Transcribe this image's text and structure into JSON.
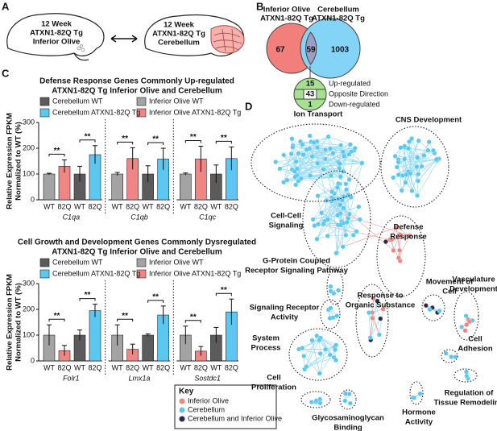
{
  "panel_labels": [
    "A",
    "B",
    "C",
    "D"
  ],
  "panel_a": {
    "left_brain": [
      "12 Week",
      "ATXN1-82Q Tg",
      "Inferior Olive"
    ],
    "right_brain": [
      "12 Week",
      "ATXN1-82Q Tg",
      "Cerebellum"
    ]
  },
  "panel_b": {
    "left_set": [
      "Inferior Olive",
      "ATXN1-82Q Tg"
    ],
    "right_set": [
      "Cerebellum",
      "ATXN1-82Q Tg"
    ],
    "left_only": 67,
    "overlap": 59,
    "right_only": 1003,
    "overlap_breakdown": [
      {
        "count": 15,
        "label": "Up-regulated"
      },
      {
        "count": 43,
        "label": "Opposite Direction"
      },
      {
        "count": 1,
        "label": "Down-regulated"
      }
    ]
  },
  "chart_data": [
    {
      "type": "bar",
      "title": [
        "Defense Response Genes Commonly Up-regulated",
        "ATXN1-82Q Tg Inferior Olive and Cerebellum"
      ],
      "y_label": [
        "Relative Expression FPKM",
        "Normalized to WT (%)"
      ],
      "categories": [
        "C1qa",
        "C1qb",
        "C1qc"
      ],
      "bar_labels": [
        "WT",
        "82Q"
      ],
      "series": [
        {
          "name": "Inferior Olive WT",
          "color": "#a3a3a3",
          "values": [
            100,
            100,
            100
          ],
          "errors": [
            3,
            6,
            4
          ]
        },
        {
          "name": "Inferior Olive ATXN1-82Q Tg",
          "color": "#ef8683",
          "values": [
            130,
            160,
            158
          ],
          "errors": [
            25,
            42,
            50
          ]
        },
        {
          "name": "Cerebellum WT",
          "color": "#5b5b5b",
          "values": [
            100,
            100,
            100
          ],
          "errors": [
            30,
            32,
            35
          ]
        },
        {
          "name": "Cerebellum ATXN1-82Q Tg",
          "color": "#5cc8f0",
          "values": [
            175,
            158,
            160
          ],
          "errors": [
            35,
            42,
            45
          ]
        }
      ],
      "ylim": [
        0,
        300
      ],
      "yticks": [
        0,
        100,
        200,
        300
      ],
      "significance_label": "**"
    },
    {
      "type": "bar",
      "title": [
        "Cell Growth and Development Genes Commonly Dysregulated",
        "ATXN1-82Q Tg Inferior Olive and Cerebellum"
      ],
      "y_label": [
        "Relative Expression FPKM",
        "Normalized to WT (%)"
      ],
      "categories": [
        "Folr1",
        "Lmx1a",
        "Sostdc1"
      ],
      "bar_labels": [
        "WT",
        "82Q"
      ],
      "series": [
        {
          "name": "Inferior Olive WT",
          "color": "#a3a3a3",
          "values": [
            100,
            100,
            100
          ],
          "errors": [
            40,
            40,
            35
          ]
        },
        {
          "name": "Inferior Olive ATXN1-82Q Tg",
          "color": "#ef8683",
          "values": [
            40,
            45,
            38
          ],
          "errors": [
            20,
            20,
            18
          ]
        },
        {
          "name": "Cerebellum WT",
          "color": "#5b5b5b",
          "values": [
            100,
            100,
            100
          ],
          "errors": [
            20,
            5,
            30
          ]
        },
        {
          "name": "Cerebellum ATXN1-82Q Tg",
          "color": "#5cc8f0",
          "values": [
            195,
            178,
            190
          ],
          "errors": [
            25,
            35,
            50
          ]
        }
      ],
      "ylim": [
        0,
        300
      ],
      "yticks": [
        0,
        100,
        200,
        300
      ],
      "significance_label": "**"
    }
  ],
  "panel_d": {
    "clusters": [
      {
        "label": [
          "Ion Transport"
        ]
      },
      {
        "label": [
          "CNS Development"
        ]
      },
      {
        "label": [
          "Cell-Cell",
          "Signaling"
        ]
      },
      {
        "label": [
          "Defense",
          "Response"
        ]
      },
      {
        "label": [
          "G-Protein Coupled",
          "Receptor Signaling Pathway"
        ]
      },
      {
        "label": [
          "Signaling Receptor",
          "Activity"
        ]
      },
      {
        "label": [
          "Response to",
          "Organic Substance"
        ]
      },
      {
        "label": [
          "Movement of",
          "Cell"
        ]
      },
      {
        "label": [
          "Vasculature",
          "Development"
        ]
      },
      {
        "label": [
          "System",
          "Process"
        ]
      },
      {
        "label": [
          "Cell",
          "Adhesion"
        ]
      },
      {
        "label": [
          "Cell",
          "Proliferation"
        ]
      },
      {
        "label": [
          "Glycosaminoglycan",
          "Binding"
        ]
      },
      {
        "label": [
          "Hormone",
          "Activity"
        ]
      },
      {
        "label": [
          "Regulation of",
          "Tissue Remodeling"
        ]
      }
    ],
    "key": {
      "title": "Key",
      "items": [
        {
          "label": "Inferior Olive",
          "color": "#ef8683"
        },
        {
          "label": "Cerebellum",
          "color": "#5cc8f0"
        },
        {
          "label": "Cerebellum and Inferior Olive",
          "color": "#2b2b4d"
        }
      ]
    }
  }
}
